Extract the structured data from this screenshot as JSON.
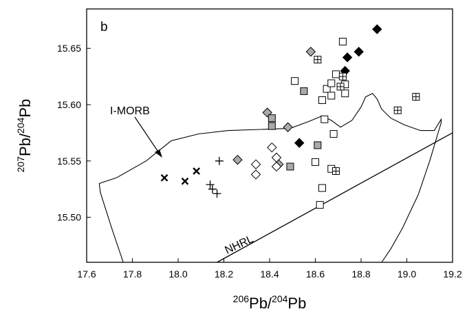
{
  "chart_data": {
    "type": "scatter",
    "panel_label": "b",
    "xaxis": {
      "label_sup1": "206",
      "label_main1": "Pb/",
      "label_sup2": "204",
      "label_main2": "Pb",
      "range": [
        17.6,
        19.2
      ],
      "ticks": [
        {
          "value": 17.6,
          "label": "17.6"
        },
        {
          "value": 17.8,
          "label": "17.8"
        },
        {
          "value": 18.0,
          "label": "18.0"
        },
        {
          "value": 18.2,
          "label": "18.2"
        },
        {
          "value": 18.4,
          "label": "18.4"
        },
        {
          "value": 18.6,
          "label": "18.6"
        },
        {
          "value": 18.8,
          "label": "18.8"
        },
        {
          "value": 19.0,
          "label": "19.0"
        },
        {
          "value": 19.2,
          "label": "19.2"
        }
      ]
    },
    "yaxis": {
      "label_sup1": "207",
      "label_main1": "Pb/",
      "label_sup2": "204",
      "label_main2": "Pb",
      "range": [
        15.46,
        15.685
      ],
      "ticks": [
        {
          "value": 15.5,
          "label": "15.50"
        },
        {
          "value": 15.55,
          "label": "15.55"
        },
        {
          "value": 15.6,
          "label": "15.60"
        },
        {
          "value": 15.65,
          "label": "15.65"
        }
      ]
    },
    "grid": false,
    "annotations": [
      {
        "text": "I-MORB",
        "anchor_x": 17.85,
        "anchor_y": 15.595
      },
      {
        "text": "NHRL",
        "anchor_x": 18.33,
        "anchor_y": 15.48
      }
    ],
    "imorb_field": [
      [
        17.76,
        15.46
      ],
      [
        17.71,
        15.49
      ],
      [
        17.66,
        15.522
      ],
      [
        17.655,
        15.53
      ],
      [
        17.73,
        15.535
      ],
      [
        17.86,
        15.55
      ],
      [
        17.97,
        15.568
      ],
      [
        18.09,
        15.574
      ],
      [
        18.22,
        15.577
      ],
      [
        18.36,
        15.578
      ],
      [
        18.49,
        15.579
      ],
      [
        18.57,
        15.585
      ],
      [
        18.63,
        15.59
      ],
      [
        18.67,
        15.586
      ],
      [
        18.71,
        15.58
      ],
      [
        18.76,
        15.586
      ],
      [
        18.8,
        15.598
      ],
      [
        18.82,
        15.607
      ],
      [
        18.85,
        15.61
      ],
      [
        18.87,
        15.605
      ],
      [
        18.89,
        15.596
      ],
      [
        18.93,
        15.588
      ],
      [
        18.99,
        15.582
      ],
      [
        19.06,
        15.577
      ],
      [
        19.12,
        15.577
      ],
      [
        19.15,
        15.587
      ],
      [
        19.15,
        15.584
      ],
      [
        19.1,
        15.55
      ],
      [
        19.05,
        15.52
      ],
      [
        18.98,
        15.49
      ],
      [
        18.93,
        15.472
      ],
      [
        18.89,
        15.46
      ]
    ],
    "nhrl_line": [
      [
        18.17,
        15.46
      ],
      [
        19.2,
        15.575
      ]
    ],
    "series": [
      {
        "marker": "diamond",
        "fill": "#000000",
        "points": [
          [
            18.53,
            15.566
          ],
          [
            18.73,
            15.63
          ],
          [
            18.74,
            15.642
          ],
          [
            18.79,
            15.647
          ],
          [
            18.87,
            15.667
          ]
        ]
      },
      {
        "marker": "diamond",
        "fill": "#aaaaaa",
        "points": [
          [
            18.26,
            15.551
          ],
          [
            18.39,
            15.593
          ],
          [
            18.44,
            15.547
          ],
          [
            18.48,
            15.58
          ],
          [
            18.58,
            15.647
          ]
        ]
      },
      {
        "marker": "diamond",
        "fill": "#ffffff",
        "points": [
          [
            18.34,
            15.538
          ],
          [
            18.34,
            15.547
          ],
          [
            18.41,
            15.562
          ],
          [
            18.43,
            15.553
          ],
          [
            18.43,
            15.545
          ]
        ]
      },
      {
        "marker": "square",
        "fill": "#aaaaaa",
        "points": [
          [
            18.41,
            15.581
          ],
          [
            18.41,
            15.588
          ],
          [
            18.49,
            15.545
          ],
          [
            18.55,
            15.612
          ],
          [
            18.61,
            15.564
          ]
        ]
      },
      {
        "marker": "square",
        "fill": "#ffffff",
        "points": [
          [
            18.51,
            15.621
          ],
          [
            18.6,
            15.549
          ],
          [
            18.63,
            15.526
          ],
          [
            18.62,
            15.511
          ],
          [
            18.64,
            15.587
          ],
          [
            18.67,
            15.543
          ],
          [
            18.68,
            15.574
          ],
          [
            18.65,
            15.614
          ],
          [
            18.67,
            15.619
          ],
          [
            18.63,
            15.604
          ],
          [
            18.69,
            15.627
          ],
          [
            18.67,
            15.608
          ],
          [
            18.73,
            15.61
          ],
          [
            18.73,
            15.618
          ],
          [
            18.72,
            15.656
          ]
        ]
      },
      {
        "marker": "square-plus",
        "fill": "#ffffff",
        "points": [
          [
            18.61,
            15.64
          ],
          [
            18.69,
            15.541
          ],
          [
            18.71,
            15.616
          ],
          [
            18.72,
            15.625
          ],
          [
            18.96,
            15.595
          ],
          [
            19.04,
            15.607
          ]
        ]
      },
      {
        "marker": "cross",
        "fill": "#000000",
        "points": [
          [
            17.94,
            15.535
          ],
          [
            18.03,
            15.532
          ],
          [
            18.08,
            15.541
          ]
        ]
      },
      {
        "marker": "plus",
        "fill": "#000000",
        "points": [
          [
            18.18,
            15.55
          ],
          [
            18.14,
            15.529
          ],
          [
            18.15,
            15.525
          ],
          [
            18.17,
            15.521
          ]
        ]
      }
    ]
  }
}
